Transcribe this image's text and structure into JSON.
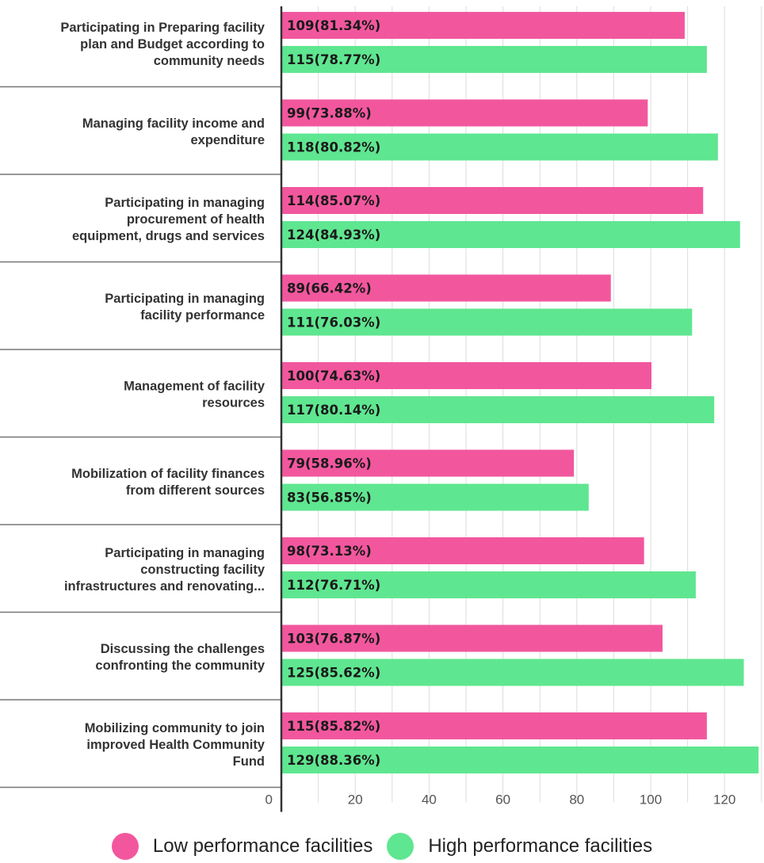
{
  "colors": {
    "low": "#f2579e",
    "high": "#5fe690",
    "axis": "#333333",
    "grid": "#dddddd",
    "separator": "#777777"
  },
  "chart_data": {
    "type": "bar",
    "orientation": "horizontal",
    "categories": [
      [
        "Participating in Preparing facility",
        "plan and Budget according to",
        "community needs"
      ],
      [
        "Managing facility income and",
        "expenditure"
      ],
      [
        "Participating in managing",
        "procurement of health",
        "equipment, drugs and services"
      ],
      [
        "Participating in managing",
        "facility performance"
      ],
      [
        "Management of facility",
        "resources"
      ],
      [
        "Mobilization of facility finances",
        "from different sources"
      ],
      [
        "Participating in managing",
        "constructing facility",
        "infrastructures and renovating..."
      ],
      [
        "Discussing the challenges",
        "confronting the community"
      ],
      [
        "Mobilizing community to join",
        "improved Health Community",
        "Fund"
      ]
    ],
    "series": [
      {
        "name": "Low performance facilities",
        "values": [
          109,
          99,
          114,
          89,
          100,
          79,
          98,
          103,
          115
        ],
        "labels": [
          "109(81.34%)",
          "99(73.88%)",
          "114(85.07%)",
          "89(66.42%)",
          "100(74.63%)",
          "79(58.96%)",
          "98(73.13%)",
          "103(76.87%)",
          "115(85.82%)"
        ]
      },
      {
        "name": "High performance facilities",
        "values": [
          115,
          118,
          124,
          111,
          117,
          83,
          112,
          125,
          129
        ],
        "labels": [
          "115(78.77%)",
          "118(80.82%)",
          "124(84.93%)",
          "111(76.03%)",
          "117(80.14%)",
          "83(56.85%)",
          "112(76.71%)",
          "125(85.62%)",
          "129(88.36%)"
        ]
      }
    ],
    "x_ticks": [
      0,
      20,
      40,
      60,
      80,
      100,
      120
    ],
    "xlim": [
      0,
      129
    ],
    "grid": true,
    "legend_position": "bottom"
  },
  "legend": {
    "low_label": "Low performance facilities",
    "high_label": "High performance facilities"
  }
}
